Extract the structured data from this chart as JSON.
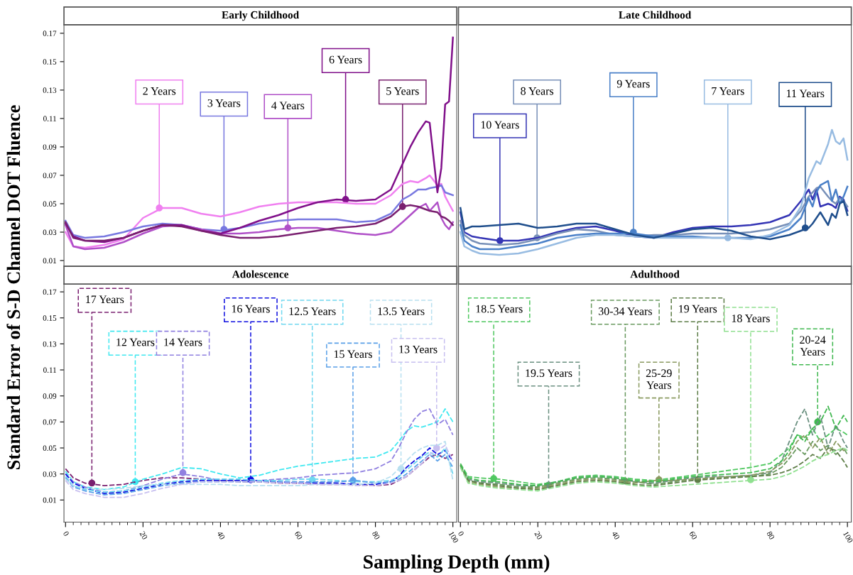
{
  "chart_data": [
    {
      "type": "line",
      "title": "Early Childhood",
      "ylabel": "Standard Error of S-D Channel DOT Fluence",
      "line_style": "solid",
      "tick_labels": "y",
      "xlim": [
        -0.4,
        101
      ],
      "ylim": [
        0.006,
        0.176
      ],
      "yticks": [
        0.01,
        0.03,
        0.05,
        0.07,
        0.09,
        0.11,
        0.13,
        0.15,
        0.17
      ],
      "x": [
        0,
        2,
        5,
        10,
        15,
        20,
        25,
        30,
        35,
        40,
        45,
        50,
        55,
        60,
        65,
        70,
        75,
        80,
        84,
        87,
        89,
        91,
        93,
        94,
        96,
        97,
        98,
        99,
        100
      ],
      "series": [
        {
          "color": "#f080f0",
          "values": [
            0.03,
            0.02,
            0.019,
            0.021,
            0.025,
            0.04,
            0.047,
            0.047,
            0.043,
            0.041,
            0.044,
            0.048,
            0.05,
            0.051,
            0.051,
            0.051,
            0.05,
            0.05,
            0.056,
            0.064,
            0.066,
            0.065,
            0.068,
            0.07,
            0.063,
            0.064,
            0.055,
            0.05,
            0.045
          ]
        },
        {
          "color": "#7878e0",
          "values": [
            0.038,
            0.028,
            0.026,
            0.027,
            0.03,
            0.034,
            0.036,
            0.035,
            0.032,
            0.031,
            0.033,
            0.036,
            0.038,
            0.039,
            0.039,
            0.039,
            0.037,
            0.038,
            0.043,
            0.053,
            0.056,
            0.06,
            0.06,
            0.061,
            0.062,
            0.063,
            0.058,
            0.057,
            0.056
          ]
        },
        {
          "color": "#b050c8",
          "values": [
            0.035,
            0.02,
            0.018,
            0.019,
            0.023,
            0.029,
            0.034,
            0.035,
            0.032,
            0.029,
            0.029,
            0.03,
            0.032,
            0.033,
            0.033,
            0.031,
            0.029,
            0.028,
            0.03,
            0.037,
            0.042,
            0.047,
            0.05,
            0.045,
            0.051,
            0.04,
            0.035,
            0.032,
            0.037
          ]
        },
        {
          "color": "#80108a",
          "values": [
            0.036,
            0.027,
            0.024,
            0.023,
            0.026,
            0.031,
            0.035,
            0.035,
            0.031,
            0.029,
            0.033,
            0.038,
            0.042,
            0.047,
            0.051,
            0.053,
            0.052,
            0.053,
            0.06,
            0.078,
            0.09,
            0.1,
            0.108,
            0.107,
            0.058,
            0.075,
            0.12,
            0.122,
            0.167
          ]
        },
        {
          "color": "#7a2070",
          "values": [
            0.037,
            0.026,
            0.024,
            0.024,
            0.026,
            0.031,
            0.035,
            0.034,
            0.031,
            0.028,
            0.026,
            0.026,
            0.027,
            0.029,
            0.031,
            0.033,
            0.034,
            0.036,
            0.041,
            0.048,
            0.049,
            0.048,
            0.046,
            0.045,
            0.044,
            0.041,
            0.04,
            0.038,
            0.035
          ]
        }
      ],
      "annotations": [
        {
          "text": "2 Years",
          "x": 24.2,
          "y": 0.047
        },
        {
          "text": "3 Years",
          "x": 40.9,
          "y": 0.032
        },
        {
          "text": "4 Years",
          "x": 57.4,
          "y": 0.033
        },
        {
          "text": "6 Years",
          "x": 72.3,
          "y": 0.053
        },
        {
          "text": "5 Years",
          "x": 87,
          "y": 0.048
        }
      ]
    },
    {
      "type": "line",
      "title": "Late Childhood",
      "line_style": "solid",
      "tick_labels": false,
      "xlim": [
        -0.5,
        101
      ],
      "ylim": [
        0.006,
        0.176
      ],
      "x": [
        0,
        1,
        3,
        5,
        10,
        15,
        20,
        25,
        30,
        35,
        40,
        45,
        50,
        55,
        60,
        65,
        70,
        75,
        80,
        85,
        88,
        90,
        91,
        92,
        93,
        95,
        96,
        97,
        98,
        99,
        100
      ],
      "series": [
        {
          "color": "#3535b5",
          "values": [
            0.044,
            0.03,
            0.027,
            0.026,
            0.024,
            0.024,
            0.026,
            0.03,
            0.033,
            0.034,
            0.031,
            0.027,
            0.026,
            0.03,
            0.033,
            0.034,
            0.034,
            0.035,
            0.037,
            0.042,
            0.052,
            0.06,
            0.053,
            0.06,
            0.048,
            0.05,
            0.049,
            0.047,
            0.055,
            0.053,
            0.045
          ]
        },
        {
          "color": "#7890b8",
          "values": [
            0.038,
            0.028,
            0.024,
            0.022,
            0.021,
            0.022,
            0.025,
            0.029,
            0.032,
            0.031,
            0.028,
            0.027,
            0.028,
            0.028,
            0.029,
            0.029,
            0.029,
            0.03,
            0.032,
            0.036,
            0.045,
            0.055,
            0.058,
            0.061,
            0.062,
            0.055,
            0.052,
            0.05,
            0.054,
            0.052,
            0.048
          ]
        },
        {
          "color": "#4a80c8",
          "values": [
            0.035,
            0.024,
            0.02,
            0.018,
            0.018,
            0.02,
            0.022,
            0.026,
            0.028,
            0.029,
            0.029,
            0.029,
            0.027,
            0.027,
            0.027,
            0.026,
            0.026,
            0.026,
            0.027,
            0.032,
            0.04,
            0.054,
            0.048,
            0.058,
            0.063,
            0.066,
            0.052,
            0.06,
            0.05,
            0.055,
            0.062
          ]
        },
        {
          "color": "#98bce2",
          "values": [
            0.03,
            0.02,
            0.017,
            0.015,
            0.014,
            0.015,
            0.018,
            0.022,
            0.026,
            0.028,
            0.028,
            0.027,
            0.026,
            0.026,
            0.026,
            0.026,
            0.026,
            0.025,
            0.028,
            0.035,
            0.048,
            0.068,
            0.074,
            0.08,
            0.078,
            0.092,
            0.102,
            0.094,
            0.092,
            0.096,
            0.081
          ]
        },
        {
          "color": "#1f4e8c",
          "values": [
            0.047,
            0.032,
            0.034,
            0.034,
            0.035,
            0.036,
            0.033,
            0.034,
            0.036,
            0.036,
            0.032,
            0.028,
            0.026,
            0.029,
            0.032,
            0.033,
            0.031,
            0.027,
            0.025,
            0.028,
            0.031,
            0.033,
            0.036,
            0.04,
            0.044,
            0.035,
            0.043,
            0.04,
            0.05,
            0.052,
            0.042
          ]
        }
      ],
      "annotations": [
        {
          "text": "10 Years",
          "x": 10.2,
          "y": 0.024
        },
        {
          "text": "8 Years",
          "x": 19.8,
          "y": 0.026
        },
        {
          "text": "9 Years",
          "x": 44.7,
          "y": 0.03
        },
        {
          "text": "7 Years",
          "x": 69.1,
          "y": 0.026
        },
        {
          "text": "11 Years",
          "x": 89.1,
          "y": 0.033
        }
      ]
    },
    {
      "type": "line",
      "title": "Adolescence",
      "xlabel": "Sampling Depth (mm)",
      "line_style": "dashed",
      "xlim": [
        -0.4,
        101
      ],
      "ylim": [
        -0.007,
        0.176
      ],
      "xticks": [
        0,
        20,
        40,
        60,
        80,
        100
      ],
      "yticks": [
        0.01,
        0.03,
        0.05,
        0.07,
        0.09,
        0.11,
        0.13,
        0.15,
        0.17
      ],
      "x": [
        0,
        2,
        5,
        10,
        15,
        20,
        25,
        30,
        35,
        40,
        45,
        50,
        55,
        60,
        65,
        70,
        75,
        80,
        84,
        86,
        88,
        90,
        92,
        94,
        96,
        98,
        100
      ],
      "series": [
        {
          "color": "#7a2070",
          "values": [
            0.034,
            0.027,
            0.023,
            0.021,
            0.022,
            0.025,
            0.027,
            0.027,
            0.026,
            0.025,
            0.024,
            0.024,
            0.023,
            0.023,
            0.022,
            0.022,
            0.022,
            0.021,
            0.022,
            0.025,
            0.028,
            0.033,
            0.038,
            0.043,
            0.045,
            0.042,
            0.045
          ]
        },
        {
          "color": "#40e8f0",
          "values": [
            0.032,
            0.024,
            0.02,
            0.018,
            0.02,
            0.026,
            0.03,
            0.035,
            0.034,
            0.03,
            0.027,
            0.029,
            0.033,
            0.036,
            0.038,
            0.04,
            0.042,
            0.043,
            0.048,
            0.055,
            0.063,
            0.067,
            0.066,
            0.068,
            0.07,
            0.08,
            0.07
          ]
        },
        {
          "color": "#9080e0",
          "values": [
            0.03,
            0.024,
            0.02,
            0.016,
            0.017,
            0.021,
            0.026,
            0.03,
            0.028,
            0.025,
            0.025,
            0.025,
            0.026,
            0.027,
            0.029,
            0.03,
            0.031,
            0.034,
            0.04,
            0.05,
            0.062,
            0.072,
            0.078,
            0.08,
            0.068,
            0.072,
            0.06
          ]
        },
        {
          "color": "#1010e0",
          "values": [
            0.03,
            0.023,
            0.019,
            0.015,
            0.016,
            0.019,
            0.022,
            0.024,
            0.025,
            0.025,
            0.025,
            0.025,
            0.024,
            0.023,
            0.023,
            0.023,
            0.022,
            0.022,
            0.024,
            0.028,
            0.035,
            0.04,
            0.044,
            0.05,
            0.045,
            0.048,
            0.04
          ]
        },
        {
          "color": "#70d8f0",
          "values": [
            0.028,
            0.021,
            0.018,
            0.016,
            0.017,
            0.02,
            0.023,
            0.025,
            0.026,
            0.026,
            0.026,
            0.025,
            0.025,
            0.026,
            0.026,
            0.025,
            0.024,
            0.024,
            0.025,
            0.028,
            0.033,
            0.038,
            0.043,
            0.047,
            0.043,
            0.05,
            0.03
          ]
        },
        {
          "color": "#5aa0e8",
          "values": [
            0.027,
            0.02,
            0.017,
            0.014,
            0.015,
            0.018,
            0.021,
            0.023,
            0.024,
            0.024,
            0.024,
            0.024,
            0.024,
            0.024,
            0.024,
            0.024,
            0.025,
            0.023,
            0.024,
            0.026,
            0.03,
            0.035,
            0.04,
            0.045,
            0.04,
            0.045,
            0.035
          ]
        },
        {
          "color": "#b8e0f0",
          "values": [
            0.026,
            0.021,
            0.019,
            0.018,
            0.019,
            0.021,
            0.022,
            0.022,
            0.022,
            0.022,
            0.021,
            0.021,
            0.021,
            0.021,
            0.022,
            0.022,
            0.022,
            0.023,
            0.028,
            0.034,
            0.04,
            0.046,
            0.05,
            0.052,
            0.052,
            0.055,
            0.025
          ]
        },
        {
          "color": "#c8c0f0",
          "values": [
            0.025,
            0.018,
            0.015,
            0.012,
            0.012,
            0.015,
            0.019,
            0.022,
            0.024,
            0.024,
            0.024,
            0.024,
            0.023,
            0.023,
            0.022,
            0.022,
            0.021,
            0.021,
            0.023,
            0.025,
            0.028,
            0.033,
            0.038,
            0.045,
            0.048,
            0.052,
            0.04
          ]
        }
      ],
      "annotations": [
        {
          "text": "17 Years",
          "x": 6.8,
          "y": 0.023
        },
        {
          "text": "12 Years",
          "x": 18,
          "y": 0.024
        },
        {
          "text": "14 Years",
          "x": 30.3,
          "y": 0.031
        },
        {
          "text": "16 Years",
          "x": 47.8,
          "y": 0.0255
        },
        {
          "text": "12.5 Years",
          "x": 63.7,
          "y": 0.0255
        },
        {
          "text": "15 Years",
          "x": 74.2,
          "y": 0.025
        },
        {
          "text": "13.5 Years",
          "x": 86.6,
          "y": 0.034
        },
        {
          "text": "13 Years",
          "x": 95.8,
          "y": 0.05
        }
      ]
    },
    {
      "type": "line",
      "title": "Adulthood",
      "line_style": "dashed",
      "tick_labels": "x",
      "xlim": [
        -0.5,
        101
      ],
      "ylim": [
        -0.007,
        0.176
      ],
      "xticks": [
        0,
        20,
        40,
        60,
        80,
        100
      ],
      "yticks": [
        0.01,
        0.03,
        0.05,
        0.07,
        0.09,
        0.11,
        0.13,
        0.15,
        0.17
      ],
      "x": [
        0,
        2,
        5,
        10,
        15,
        20,
        25,
        30,
        35,
        40,
        45,
        50,
        55,
        60,
        65,
        70,
        75,
        80,
        83,
        85,
        87,
        89,
        91,
        93,
        95,
        97,
        99,
        100
      ],
      "series": [
        {
          "color": "#50c860",
          "values": [
            0.038,
            0.028,
            0.027,
            0.026,
            0.024,
            0.022,
            0.024,
            0.028,
            0.029,
            0.028,
            0.026,
            0.025,
            0.027,
            0.029,
            0.031,
            0.033,
            0.035,
            0.038,
            0.045,
            0.05,
            0.06,
            0.058,
            0.065,
            0.055,
            0.06,
            0.065,
            0.062,
            0.06
          ]
        },
        {
          "color": "#6a9080",
          "values": [
            0.036,
            0.026,
            0.024,
            0.023,
            0.021,
            0.021,
            0.024,
            0.027,
            0.028,
            0.027,
            0.024,
            0.023,
            0.025,
            0.027,
            0.028,
            0.028,
            0.029,
            0.031,
            0.04,
            0.055,
            0.07,
            0.08,
            0.06,
            0.075,
            0.05,
            0.068,
            0.055,
            0.05
          ]
        },
        {
          "color": "#6a9a60",
          "values": [
            0.037,
            0.025,
            0.023,
            0.022,
            0.02,
            0.02,
            0.023,
            0.026,
            0.027,
            0.026,
            0.024,
            0.022,
            0.024,
            0.026,
            0.027,
            0.028,
            0.028,
            0.03,
            0.035,
            0.042,
            0.05,
            0.045,
            0.055,
            0.048,
            0.052,
            0.045,
            0.05,
            0.045
          ]
        },
        {
          "color": "#8a9a60",
          "values": [
            0.036,
            0.024,
            0.022,
            0.02,
            0.019,
            0.019,
            0.022,
            0.025,
            0.026,
            0.025,
            0.023,
            0.025,
            0.025,
            0.026,
            0.027,
            0.028,
            0.029,
            0.032,
            0.038,
            0.045,
            0.055,
            0.06,
            0.05,
            0.058,
            0.045,
            0.055,
            0.048,
            0.05
          ]
        },
        {
          "color": "#5e7e48",
          "values": [
            0.037,
            0.025,
            0.023,
            0.021,
            0.019,
            0.018,
            0.021,
            0.024,
            0.025,
            0.024,
            0.022,
            0.021,
            0.023,
            0.025,
            0.026,
            0.027,
            0.028,
            0.029,
            0.031,
            0.033,
            0.036,
            0.04,
            0.045,
            0.042,
            0.05,
            0.048,
            0.04,
            0.035
          ]
        },
        {
          "color": "#90e090",
          "values": [
            0.035,
            0.023,
            0.021,
            0.019,
            0.018,
            0.017,
            0.02,
            0.023,
            0.024,
            0.023,
            0.021,
            0.02,
            0.021,
            0.022,
            0.023,
            0.024,
            0.025,
            0.026,
            0.028,
            0.03,
            0.033,
            0.036,
            0.04,
            0.043,
            0.045,
            0.048,
            0.05,
            0.048
          ]
        },
        {
          "color": "#40b850",
          "values": [
            0.037,
            0.027,
            0.025,
            0.024,
            0.022,
            0.021,
            0.024,
            0.027,
            0.028,
            0.027,
            0.025,
            0.024,
            0.026,
            0.028,
            0.029,
            0.03,
            0.031,
            0.034,
            0.04,
            0.048,
            0.06,
            0.055,
            0.065,
            0.07,
            0.082,
            0.065,
            0.075,
            0.07
          ]
        }
      ],
      "annotations": [
        {
          "text": "18.5 Years",
          "x": 8.6,
          "y": 0.0265
        },
        {
          "text": "19.5 Years",
          "x": 22.8,
          "y": 0.0215
        },
        {
          "text": "30-34 Years",
          "x": 42.6,
          "y": 0.0245
        },
        {
          "text": "25-29 Years",
          "x": 51.3,
          "y": 0.0256
        },
        {
          "text": "19 Years",
          "x": 61.3,
          "y": 0.0256
        },
        {
          "text": "18 Years",
          "x": 75,
          "y": 0.0255
        },
        {
          "text": "20-24 Years",
          "x": 92.3,
          "y": 0.07
        }
      ]
    }
  ]
}
